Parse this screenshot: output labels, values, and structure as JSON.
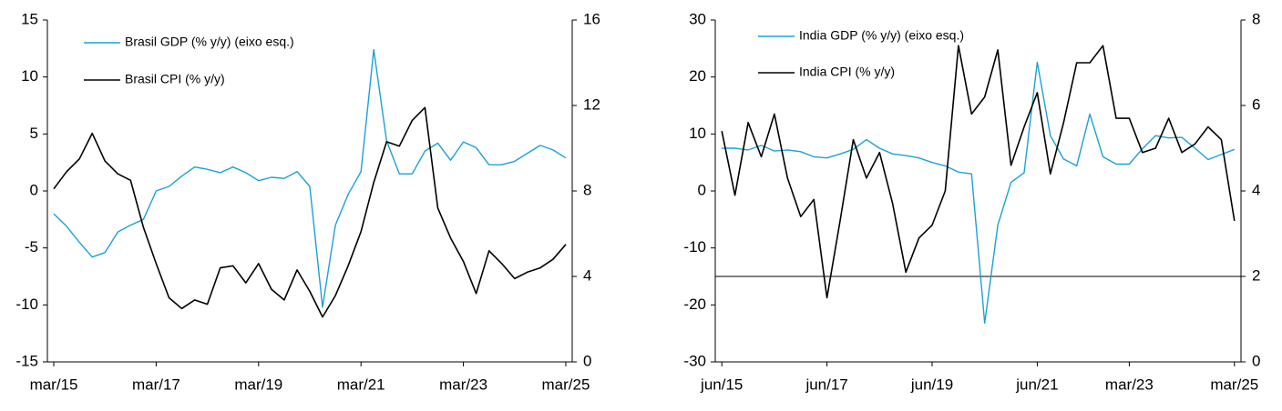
{
  "chart_data": [
    {
      "type": "line",
      "categories": [
        "mar/15",
        null,
        null,
        null,
        null,
        null,
        null,
        null,
        "mar/17",
        null,
        null,
        null,
        null,
        null,
        null,
        null,
        "mar/19",
        null,
        null,
        null,
        null,
        null,
        null,
        null,
        "mar/21",
        null,
        null,
        null,
        null,
        null,
        null,
        null,
        "mar/23",
        null,
        null,
        null,
        null,
        null,
        null,
        null,
        "mar/25"
      ],
      "series": [
        {
          "name": "Brasil GDP (% y/y) (eixo esq.)",
          "color": "#1ba1d8",
          "axis": "y",
          "values": [
            -2.0,
            -3.1,
            -4.5,
            -5.8,
            -5.4,
            -3.6,
            -3.0,
            -2.5,
            0.0,
            0.4,
            1.3,
            2.1,
            1.9,
            1.6,
            2.1,
            1.6,
            0.9,
            1.2,
            1.1,
            1.7,
            0.4,
            -10.2,
            -3.0,
            -0.3,
            1.7,
            12.4,
            4.4,
            1.5,
            1.5,
            3.5,
            4.2,
            2.7,
            4.3,
            3.8,
            2.3,
            2.3,
            2.6,
            3.3,
            4.0,
            3.6,
            2.9
          ]
        },
        {
          "name": "Brasil CPI (% y/y)",
          "color": "#000000",
          "axis": "y2",
          "values": [
            8.1,
            8.9,
            9.5,
            10.7,
            9.4,
            8.8,
            8.5,
            6.3,
            4.6,
            3.0,
            2.5,
            2.9,
            2.7,
            4.4,
            4.5,
            3.7,
            4.6,
            3.4,
            2.9,
            4.3,
            3.3,
            2.1,
            3.1,
            4.5,
            6.1,
            8.4,
            10.3,
            10.1,
            11.3,
            11.9,
            7.2,
            5.8,
            4.7,
            3.2,
            5.2,
            4.6,
            3.9,
            4.2,
            4.4,
            4.8,
            5.5
          ]
        }
      ],
      "ylim": [
        -15,
        15
      ],
      "yticks": [
        -15,
        -10,
        -5,
        0,
        5,
        10,
        15
      ],
      "y2lim": [
        0,
        16
      ],
      "y2ticks": [
        0,
        4,
        8,
        12,
        16
      ]
    },
    {
      "type": "line",
      "categories": [
        "jun/15",
        null,
        null,
        null,
        null,
        null,
        null,
        null,
        "jun/17",
        null,
        null,
        null,
        null,
        null,
        null,
        null,
        "jun/19",
        null,
        null,
        null,
        null,
        null,
        null,
        null,
        "jun/21",
        null,
        null,
        null,
        null,
        null,
        null,
        "mar/23",
        null,
        null,
        null,
        null,
        null,
        null,
        null,
        "mar/25"
      ],
      "series": [
        {
          "name": "India GDP (% y/y) (eixo esq.)",
          "color": "#1ba1d8",
          "axis": "y",
          "values": [
            7.5,
            7.5,
            7.2,
            8.0,
            7.0,
            7.2,
            6.9,
            6.0,
            5.8,
            6.5,
            7.3,
            9.0,
            7.5,
            6.5,
            6.2,
            5.8,
            5.0,
            4.4,
            3.3,
            3.0,
            -23.2,
            -6.0,
            1.5,
            3.2,
            22.6,
            9.7,
            5.6,
            4.4,
            13.5,
            6.0,
            4.7,
            4.7,
            7.4,
            9.7,
            9.3,
            9.4,
            7.5,
            5.5,
            6.4,
            7.3
          ]
        },
        {
          "name": "India CPI (% y/y)",
          "color": "#000000",
          "axis": "y2",
          "values": [
            5.4,
            3.9,
            5.6,
            4.8,
            5.8,
            4.3,
            3.4,
            3.8,
            1.5,
            3.3,
            5.2,
            4.3,
            4.9,
            3.7,
            2.1,
            2.9,
            3.2,
            4.0,
            7.4,
            5.8,
            6.2,
            7.3,
            4.6,
            5.5,
            6.3,
            4.4,
            5.6,
            7.0,
            7.0,
            7.4,
            5.7,
            5.7,
            4.9,
            5.0,
            5.7,
            4.9,
            5.1,
            5.5,
            5.2,
            3.3
          ]
        }
      ],
      "ylim": [
        -30,
        30
      ],
      "yticks": [
        -30,
        -20,
        -10,
        0,
        10,
        20,
        30
      ],
      "y2lim": [
        0,
        8
      ],
      "y2ticks": [
        0,
        2,
        4,
        6,
        8
      ],
      "reference_line": -15
    }
  ]
}
